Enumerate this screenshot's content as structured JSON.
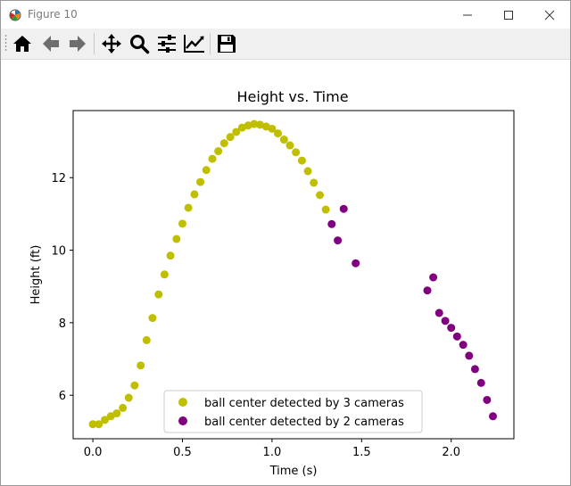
{
  "window": {
    "title": "Figure 10"
  },
  "toolbar": {
    "tools": [
      {
        "name": "home-icon"
      },
      {
        "name": "back-arrow-icon"
      },
      {
        "name": "forward-arrow-icon"
      },
      {
        "name": "pan-icon"
      },
      {
        "name": "zoom-icon"
      },
      {
        "name": "subplots-config-icon"
      },
      {
        "name": "edit-axis-icon"
      },
      {
        "name": "save-icon"
      }
    ]
  },
  "colors": {
    "series1": "#bfbf00",
    "series2": "#800080"
  },
  "chart_data": {
    "type": "scatter",
    "title": "Height vs. Time",
    "xlabel": "Time (s)",
    "ylabel": "Height (ft)",
    "xlim": [
      -0.11,
      2.35
    ],
    "ylim": [
      4.8,
      13.85
    ],
    "xticks": [
      0.0,
      0.5,
      1.0,
      1.5,
      2.0
    ],
    "xtick_labels": [
      "0.0",
      "0.5",
      "1.0",
      "1.5",
      "2.0"
    ],
    "yticks": [
      6,
      8,
      10,
      12
    ],
    "ytick_labels": [
      "6",
      "8",
      "10",
      "12"
    ],
    "grid": false,
    "legend_position": "lower center",
    "series": [
      {
        "name": "ball center detected by 3 cameras",
        "color": "#bfbf00",
        "points": [
          [
            0.0,
            5.2
          ],
          [
            0.033,
            5.2
          ],
          [
            0.067,
            5.32
          ],
          [
            0.1,
            5.42
          ],
          [
            0.133,
            5.5
          ],
          [
            0.167,
            5.65
          ],
          [
            0.2,
            5.93
          ],
          [
            0.233,
            6.27
          ],
          [
            0.267,
            6.82
          ],
          [
            0.3,
            7.52
          ],
          [
            0.333,
            8.13
          ],
          [
            0.367,
            8.78
          ],
          [
            0.4,
            9.33
          ],
          [
            0.433,
            9.85
          ],
          [
            0.467,
            10.31
          ],
          [
            0.5,
            10.73
          ],
          [
            0.533,
            11.17
          ],
          [
            0.567,
            11.54
          ],
          [
            0.6,
            11.88
          ],
          [
            0.633,
            12.21
          ],
          [
            0.667,
            12.52
          ],
          [
            0.7,
            12.73
          ],
          [
            0.733,
            12.95
          ],
          [
            0.767,
            13.12
          ],
          [
            0.8,
            13.26
          ],
          [
            0.833,
            13.38
          ],
          [
            0.867,
            13.44
          ],
          [
            0.9,
            13.48
          ],
          [
            0.933,
            13.46
          ],
          [
            0.967,
            13.41
          ],
          [
            1.0,
            13.35
          ],
          [
            1.033,
            13.22
          ],
          [
            1.067,
            13.05
          ],
          [
            1.1,
            12.89
          ],
          [
            1.133,
            12.7
          ],
          [
            1.167,
            12.47
          ],
          [
            1.2,
            12.18
          ],
          [
            1.233,
            11.86
          ],
          [
            1.267,
            11.52
          ],
          [
            1.3,
            11.12
          ]
        ]
      },
      {
        "name": "ball center detected by 2 cameras",
        "color": "#800080",
        "points": [
          [
            1.333,
            10.72
          ],
          [
            1.367,
            10.27
          ],
          [
            1.4,
            11.14
          ],
          [
            1.467,
            9.64
          ],
          [
            1.867,
            8.89
          ],
          [
            1.9,
            9.25
          ],
          [
            1.933,
            8.27
          ],
          [
            1.967,
            8.05
          ],
          [
            2.0,
            7.86
          ],
          [
            2.033,
            7.62
          ],
          [
            2.067,
            7.39
          ],
          [
            2.1,
            7.09
          ],
          [
            2.133,
            6.72
          ],
          [
            2.167,
            6.34
          ],
          [
            2.2,
            5.87
          ],
          [
            2.233,
            5.42
          ]
        ]
      }
    ]
  }
}
